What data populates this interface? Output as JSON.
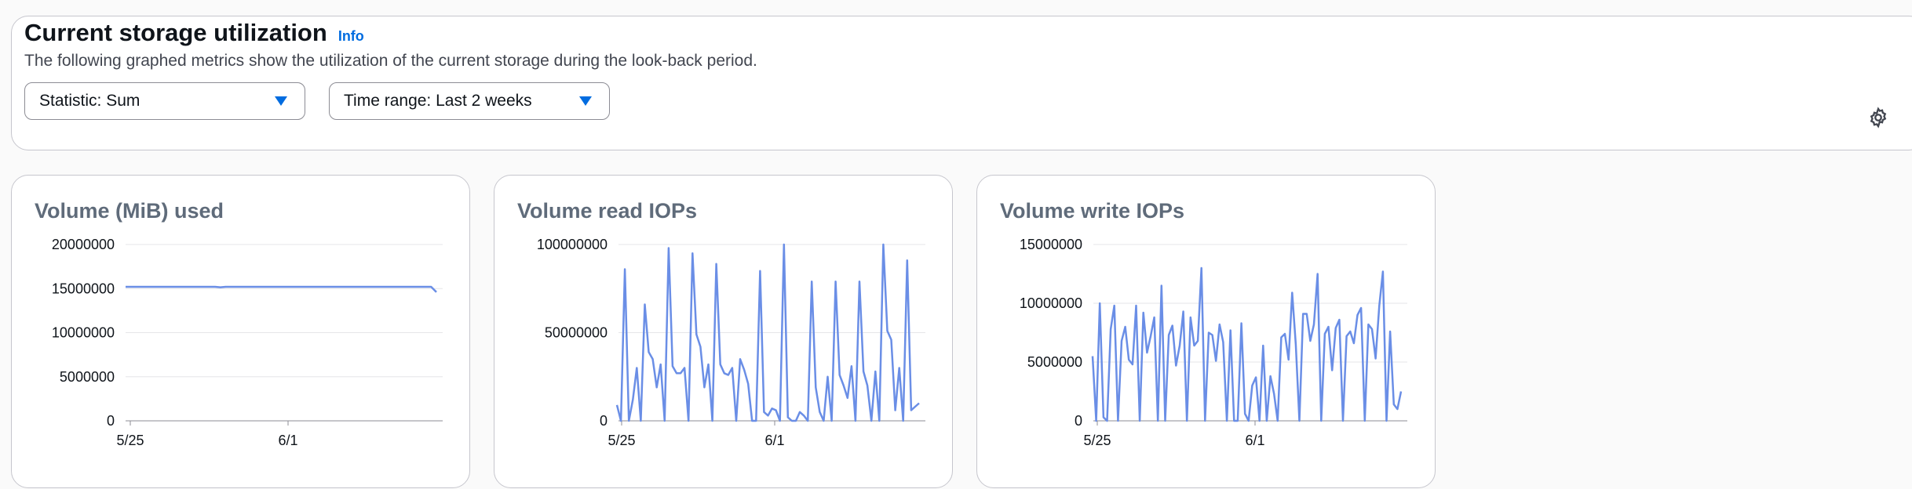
{
  "header": {
    "title": "Current storage utilization",
    "info_label": "Info",
    "description": "The following graphed metrics show the utilization of the current storage during the look-back period.",
    "statistic_select": "Statistic: Sum",
    "range_select": "Time range: Last 2 weeks",
    "settings_icon": "gear-icon"
  },
  "colors": {
    "line": "#6a8ee6",
    "accent": "#006ce0",
    "grid": "#e6e6e8"
  },
  "cards": [
    {
      "title": "Volume (MiB) used"
    },
    {
      "title": "Volume read IOPs"
    },
    {
      "title": "Volume write IOPs"
    }
  ],
  "chart_data": [
    {
      "type": "line",
      "title": "Volume (MiB) used",
      "x_tick_labels": [
        "5/25",
        "6/1"
      ],
      "y_ticks": [
        "20000000",
        "15000000",
        "10000000",
        "5000000",
        "0"
      ],
      "ylim": [
        0,
        20000000
      ],
      "grid": true,
      "series": [
        {
          "values": [
            15200000,
            15200000,
            15200000,
            15200000,
            15200000,
            15200000,
            15200000,
            15200000,
            15200000,
            15200000,
            15200000,
            15200000,
            15200000,
            15200000,
            15200000,
            15200000,
            15200000,
            15200000,
            15150000,
            15200000,
            15200000,
            15200000,
            15200000,
            15200000,
            15200000,
            15200000,
            15200000,
            15200000,
            15200000,
            15200000,
            15200000,
            15200000,
            15200000,
            15200000,
            15200000,
            15200000,
            15200000,
            15200000,
            15200000,
            15200000,
            15200000,
            15200000,
            15200000,
            15200000,
            15200000,
            15200000,
            15200000,
            15200000,
            15200000,
            15200000,
            15200000,
            15200000,
            15200000,
            15200000,
            15200000,
            15200000,
            15200000,
            15200000,
            15200000,
            14600000
          ]
        }
      ]
    },
    {
      "type": "line",
      "title": "Volume read IOPs",
      "x_tick_labels": [
        "5/25",
        "6/1"
      ],
      "y_ticks": [
        "100000000",
        "50000000",
        "0"
      ],
      "ylim": [
        0,
        100000000
      ],
      "grid": true,
      "series": [
        {
          "values": [
            9000000,
            0,
            86000000,
            0,
            12000000,
            30000000,
            0,
            66000000,
            39000000,
            35000000,
            19000000,
            32000000,
            0,
            98000000,
            31000000,
            27000000,
            27000000,
            30000000,
            0,
            95000000,
            49000000,
            42000000,
            19000000,
            32000000,
            0,
            89000000,
            32000000,
            27000000,
            26000000,
            30000000,
            0,
            35000000,
            29000000,
            21000000,
            0,
            0,
            85000000,
            5000000,
            3000000,
            7000000,
            6000000,
            0,
            100000000,
            2000000,
            0,
            0,
            5000000,
            3000000,
            0,
            79000000,
            19000000,
            5000000,
            0,
            25000000,
            0,
            79000000,
            26000000,
            20000000,
            13000000,
            31000000,
            0,
            79000000,
            28000000,
            20000000,
            0,
            28000000,
            0,
            100000000,
            51000000,
            46000000,
            6000000,
            30000000,
            0,
            91000000,
            6000000,
            8000000,
            10000000
          ]
        }
      ]
    },
    {
      "type": "line",
      "title": "Volume write IOPs",
      "x_tick_labels": [
        "5/25",
        "6/1"
      ],
      "y_ticks": [
        "15000000",
        "10000000",
        "5000000",
        "0"
      ],
      "ylim": [
        0,
        15000000
      ],
      "grid": true,
      "series": [
        {
          "values": [
            5500000,
            0,
            10000000,
            300000,
            0,
            7800000,
            9800000,
            0,
            6800000,
            8000000,
            5200000,
            4800000,
            9800000,
            0,
            9200000,
            5800000,
            7200000,
            8800000,
            0,
            11500000,
            0,
            7300000,
            8100000,
            4700000,
            6400000,
            9300000,
            0,
            8800000,
            6400000,
            6800000,
            13000000,
            0,
            7500000,
            7300000,
            5100000,
            8200000,
            6700000,
            0,
            7700000,
            0,
            0,
            8300000,
            600000,
            0,
            3000000,
            3700000,
            0,
            6400000,
            0,
            3800000,
            2300000,
            0,
            7100000,
            7400000,
            5200000,
            10900000,
            6500000,
            0,
            9100000,
            9100000,
            6800000,
            8200000,
            12500000,
            0,
            7400000,
            8000000,
            4300000,
            7900000,
            8600000,
            0,
            7200000,
            7600000,
            6600000,
            9000000,
            9600000,
            0,
            8200000,
            7800000,
            5300000,
            9800000,
            12700000,
            0,
            7600000,
            1400000,
            1000000,
            2500000
          ]
        }
      ]
    }
  ]
}
